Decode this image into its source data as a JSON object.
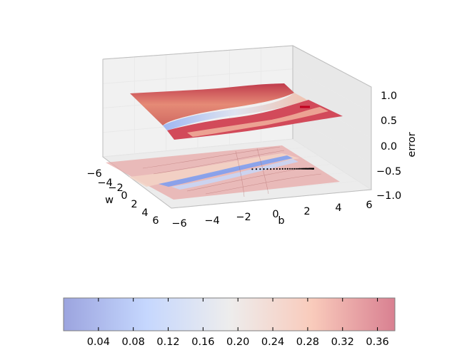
{
  "chart_data": [
    {
      "type": "surface",
      "xlabel": "b",
      "ylabel": "w",
      "zlabel": "error",
      "xlim": [
        -6,
        6
      ],
      "ylim": [
        -6,
        6
      ],
      "zlim": [
        -1.0,
        1.0
      ],
      "xticks": [
        "−6",
        "−4",
        "−2",
        "0",
        "2",
        "4",
        "6"
      ],
      "yticks": [
        "−6",
        "−4",
        "−2",
        "0",
        "2",
        "4",
        "6"
      ],
      "zticks": [
        "1.0",
        "0.5",
        "0.0",
        "−0.5",
        "−1.0"
      ],
      "surface": {
        "z_min": 0.0,
        "z_max": 0.38,
        "colormap": "coolwarm"
      },
      "contour": {
        "projected_at_z": -1.0
      },
      "descent_path": {
        "color": "#000000",
        "from": [
          -1.5,
          -0.7
        ],
        "to": [
          3.6,
          0.0
        ]
      }
    },
    {
      "type": "colorbar",
      "colormap": "coolwarm",
      "range": [
        0.0,
        0.38
      ],
      "ticks": [
        "0.04",
        "0.08",
        "0.12",
        "0.16",
        "0.20",
        "0.24",
        "0.28",
        "0.32",
        "0.36"
      ]
    }
  ]
}
